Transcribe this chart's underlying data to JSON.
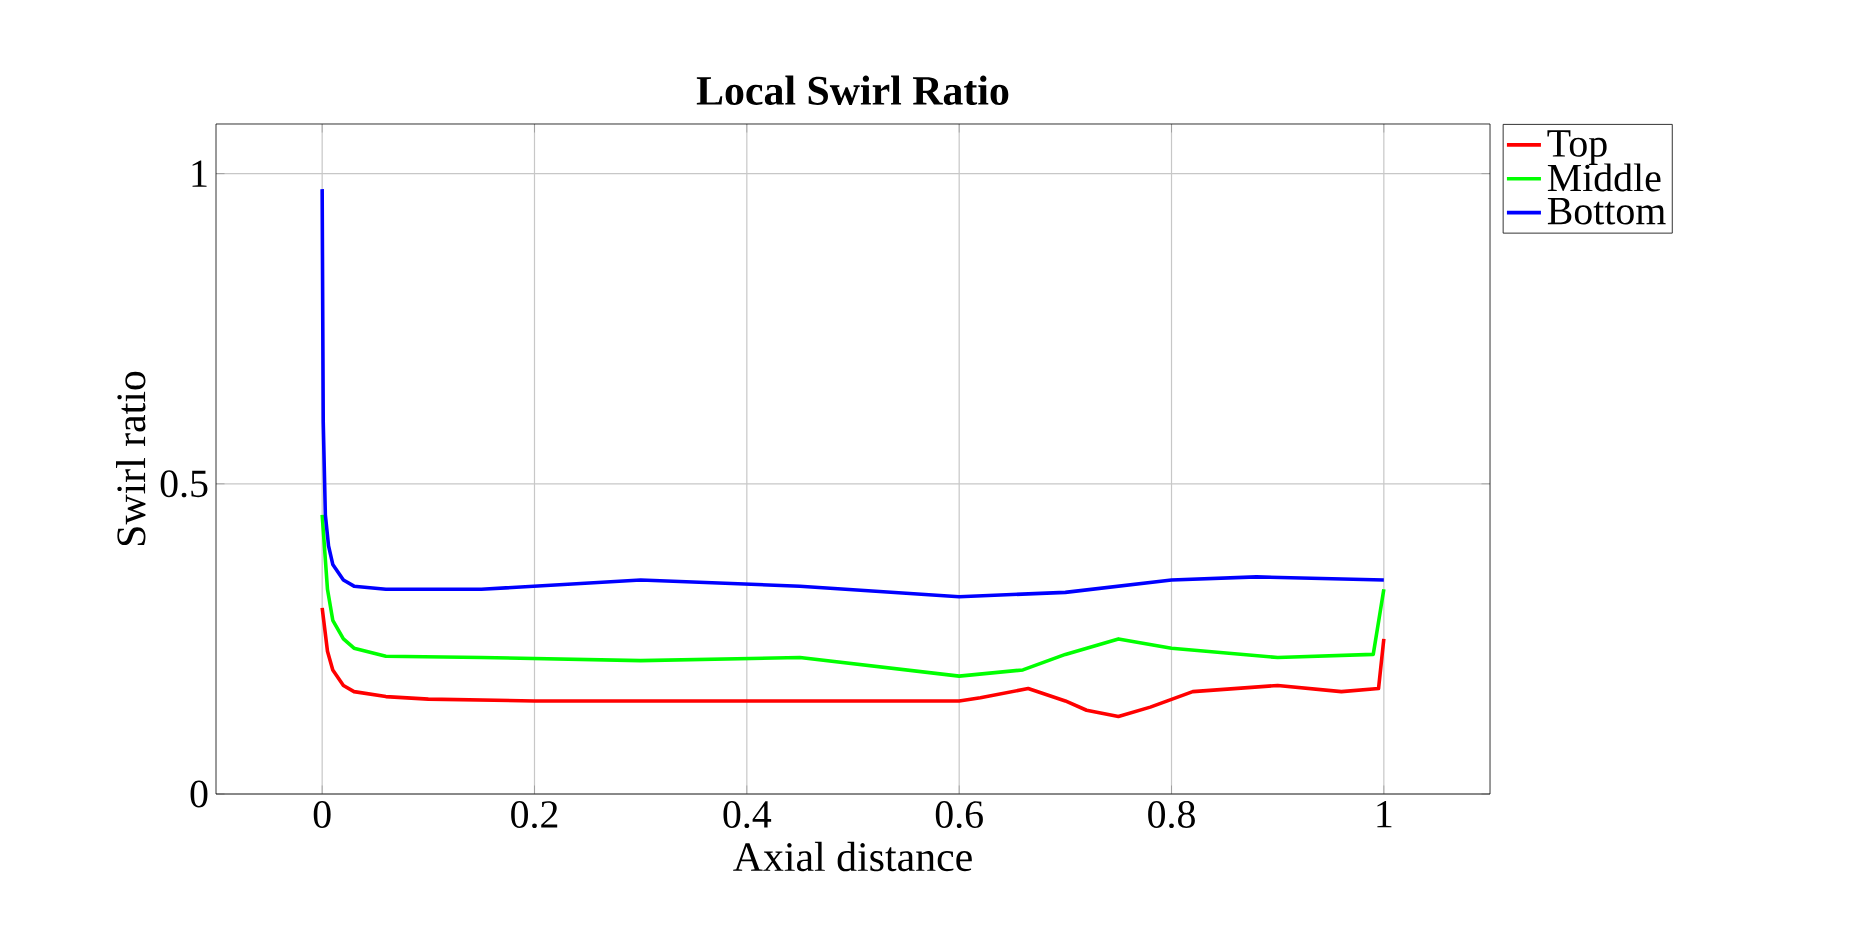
{
  "chart_data": {
    "type": "line",
    "title": "Local Swirl Ratio",
    "xlabel": "Axial distance",
    "ylabel": "Swirl ratio",
    "xlim": [
      -0.1,
      1.1
    ],
    "ylim": [
      0,
      1.08
    ],
    "xticks": [
      0,
      0.2,
      0.4,
      0.6,
      0.8,
      1
    ],
    "yticks": [
      0,
      0.5,
      1
    ],
    "grid": true,
    "legend": "top right",
    "line_style": "solid",
    "marker": "none",
    "series": [
      {
        "name": "Top",
        "color": "#ff0000",
        "x": [
          0,
          0.005,
          0.01,
          0.02,
          0.03,
          0.06,
          0.1,
          0.2,
          0.4,
          0.6,
          0.62,
          0.665,
          0.7,
          0.72,
          0.75,
          0.78,
          0.82,
          0.86,
          0.9,
          0.96,
          0.995,
          1
        ],
        "values": [
          0.3,
          0.23,
          0.2,
          0.175,
          0.165,
          0.157,
          0.153,
          0.15,
          0.15,
          0.15,
          0.155,
          0.17,
          0.15,
          0.135,
          0.125,
          0.14,
          0.165,
          0.17,
          0.175,
          0.165,
          0.17,
          0.25
        ]
      },
      {
        "name": "Middle",
        "color": "#00ff00",
        "x": [
          0,
          0.005,
          0.01,
          0.02,
          0.03,
          0.06,
          0.15,
          0.3,
          0.45,
          0.6,
          0.66,
          0.7,
          0.75,
          0.8,
          0.9,
          0.99,
          1
        ],
        "values": [
          0.45,
          0.33,
          0.28,
          0.25,
          0.235,
          0.222,
          0.22,
          0.215,
          0.22,
          0.19,
          0.2,
          0.225,
          0.25,
          0.235,
          0.22,
          0.225,
          0.33
        ]
      },
      {
        "name": "Bottom",
        "color": "#0000ff",
        "x": [
          0,
          0.001,
          0.003,
          0.006,
          0.01,
          0.02,
          0.03,
          0.06,
          0.15,
          0.3,
          0.45,
          0.6,
          0.7,
          0.8,
          0.88,
          1
        ],
        "values": [
          0.975,
          0.6,
          0.45,
          0.4,
          0.37,
          0.345,
          0.335,
          0.33,
          0.33,
          0.345,
          0.335,
          0.318,
          0.325,
          0.345,
          0.35,
          0.345
        ]
      }
    ]
  }
}
